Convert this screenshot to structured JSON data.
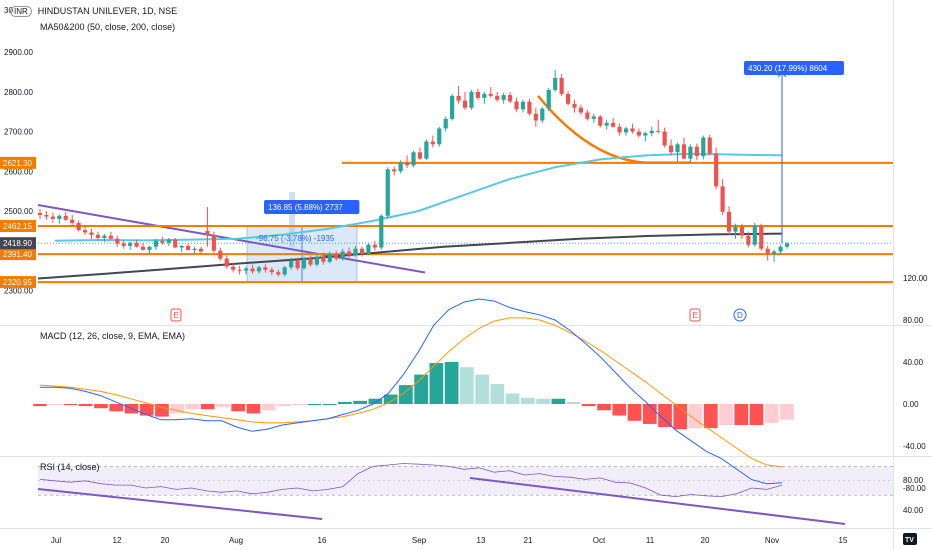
{
  "header": {
    "currency": "INR",
    "title": "HINDUSTAN UNILEVER, 1D, NSE",
    "ma_label": "MA50&200 (50, close, 200, close)",
    "macd_label": "MACD (12, 26, close, 9, EMA, EMA)",
    "rsi_label": "RSI (14, close)",
    "top_tick_partial": "30"
  },
  "colors": {
    "up": "#26a69a",
    "down": "#ef5350",
    "level": "#f57c00",
    "trend": "#7e57c2",
    "ma50": "#5ac8e0",
    "ma200": "#434651",
    "measure": "#2962ff",
    "macd_line": "#2962ff",
    "signal_line": "#ff9800"
  },
  "annotations": {
    "measure_up": "430.20 (17.99%) 8604",
    "measure_mid": "136.85 (5.88%) 2737",
    "measure_down": "-96.75 (-3.78%) -1935",
    "event_e": "E",
    "event_d": "D"
  },
  "logo_text": "TV",
  "chart_data": [
    {
      "type": "candlestick",
      "title": "HINDUSTAN UNILEVER, 1D, NSE",
      "y_ticks": [
        "2900.00",
        "2800.00",
        "2700.00",
        "2600.00",
        "2500.00",
        "2300.00"
      ],
      "ylim": [
        2265,
        3010
      ],
      "x_ticks": [
        "Jul",
        "12",
        "20",
        "Aug",
        "16",
        "Sep",
        "13",
        "21",
        "Oct",
        "11",
        "20",
        "Nov",
        "15"
      ],
      "levels": [
        {
          "value": 2621.3,
          "label": "2621.30"
        },
        {
          "value": 2462.15,
          "label": "2462.15"
        },
        {
          "value": 2391.4,
          "label": "2391.40"
        },
        {
          "value": 2320.95,
          "label": "2320.95"
        }
      ],
      "current_price": {
        "value": 2418.9,
        "label": "2418.90"
      },
      "series": [
        {
          "name": "MA50",
          "values": [
            2425,
            2427,
            2426,
            2428,
            2430,
            2440,
            2455,
            2475,
            2500,
            2540,
            2580,
            2610,
            2630,
            2640,
            2644,
            2642,
            2640
          ]
        },
        {
          "name": "MA200",
          "values": [
            2330,
            2342,
            2355,
            2368,
            2380,
            2395,
            2410,
            2420,
            2430,
            2437,
            2441,
            2443
          ]
        }
      ],
      "candles": [
        [
          2495,
          2505,
          2480,
          2490
        ],
        [
          2490,
          2500,
          2478,
          2486
        ],
        [
          2486,
          2496,
          2470,
          2480
        ],
        [
          2480,
          2492,
          2468,
          2488
        ],
        [
          2488,
          2498,
          2475,
          2478
        ],
        [
          2478,
          2490,
          2465,
          2470
        ],
        [
          2470,
          2476,
          2448,
          2452
        ],
        [
          2452,
          2462,
          2440,
          2446
        ],
        [
          2446,
          2455,
          2430,
          2440
        ],
        [
          2440,
          2448,
          2425,
          2432
        ],
        [
          2432,
          2442,
          2422,
          2438
        ],
        [
          2438,
          2448,
          2428,
          2430
        ],
        [
          2430,
          2438,
          2410,
          2418
        ],
        [
          2418,
          2426,
          2405,
          2412
        ],
        [
          2412,
          2422,
          2402,
          2420
        ],
        [
          2420,
          2428,
          2408,
          2410
        ],
        [
          2410,
          2420,
          2400,
          2402
        ],
        [
          2402,
          2412,
          2392,
          2410
        ],
        [
          2410,
          2430,
          2402,
          2425
        ],
        [
          2425,
          2435,
          2415,
          2420
        ],
        [
          2420,
          2432,
          2412,
          2428
        ],
        [
          2428,
          2432,
          2406,
          2408
        ],
        [
          2408,
          2414,
          2396,
          2412
        ],
        [
          2412,
          2418,
          2400,
          2402
        ],
        [
          2402,
          2410,
          2392,
          2405
        ],
        [
          2405,
          2410,
          2392,
          2398
        ],
        [
          2450,
          2510,
          2410,
          2440
        ],
        [
          2440,
          2448,
          2395,
          2400
        ],
        [
          2400,
          2408,
          2375,
          2380
        ],
        [
          2380,
          2388,
          2355,
          2360
        ],
        [
          2360,
          2370,
          2345,
          2352
        ],
        [
          2352,
          2362,
          2340,
          2350
        ],
        [
          2350,
          2360,
          2340,
          2355
        ],
        [
          2355,
          2365,
          2342,
          2348
        ],
        [
          2348,
          2362,
          2342,
          2358
        ],
        [
          2358,
          2366,
          2345,
          2352
        ],
        [
          2352,
          2358,
          2338,
          2346
        ],
        [
          2346,
          2352,
          2335,
          2340
        ],
        [
          2340,
          2362,
          2335,
          2358
        ],
        [
          2358,
          2382,
          2352,
          2375
        ],
        [
          2375,
          2382,
          2350,
          2356
        ],
        [
          2356,
          2385,
          2352,
          2380
        ],
        [
          2380,
          2388,
          2360,
          2365
        ],
        [
          2365,
          2392,
          2360,
          2385
        ],
        [
          2385,
          2395,
          2365,
          2372
        ],
        [
          2372,
          2398,
          2368,
          2392
        ],
        [
          2392,
          2400,
          2375,
          2380
        ],
        [
          2380,
          2405,
          2375,
          2398
        ],
        [
          2398,
          2408,
          2382,
          2388
        ],
        [
          2388,
          2412,
          2385,
          2405
        ],
        [
          2405,
          2410,
          2385,
          2392
        ],
        [
          2392,
          2420,
          2388,
          2415
        ],
        [
          2415,
          2425,
          2400,
          2408
        ],
        [
          2408,
          2492,
          2402,
          2488
        ],
        [
          2488,
          2610,
          2482,
          2605
        ],
        [
          2605,
          2612,
          2590,
          2600
        ],
        [
          2600,
          2628,
          2595,
          2622
        ],
        [
          2622,
          2640,
          2608,
          2615
        ],
        [
          2615,
          2652,
          2610,
          2648
        ],
        [
          2648,
          2660,
          2628,
          2632
        ],
        [
          2632,
          2680,
          2628,
          2675
        ],
        [
          2675,
          2690,
          2660,
          2668
        ],
        [
          2668,
          2712,
          2662,
          2708
        ],
        [
          2708,
          2738,
          2700,
          2732
        ],
        [
          2732,
          2795,
          2728,
          2790
        ],
        [
          2790,
          2815,
          2770,
          2778
        ],
        [
          2778,
          2800,
          2755,
          2760
        ],
        [
          2760,
          2805,
          2755,
          2800
        ],
        [
          2800,
          2808,
          2780,
          2785
        ],
        [
          2785,
          2800,
          2770,
          2795
        ],
        [
          2795,
          2812,
          2785,
          2790
        ],
        [
          2790,
          2800,
          2775,
          2780
        ],
        [
          2780,
          2798,
          2770,
          2792
        ],
        [
          2792,
          2800,
          2772,
          2776
        ],
        [
          2776,
          2785,
          2750,
          2756
        ],
        [
          2756,
          2780,
          2748,
          2775
        ],
        [
          2775,
          2782,
          2740,
          2745
        ],
        [
          2745,
          2760,
          2712,
          2728
        ],
        [
          2728,
          2762,
          2722,
          2758
        ],
        [
          2758,
          2810,
          2752,
          2805
        ],
        [
          2805,
          2855,
          2800,
          2835
        ],
        [
          2835,
          2845,
          2790,
          2795
        ],
        [
          2795,
          2802,
          2765,
          2770
        ],
        [
          2770,
          2780,
          2748,
          2760
        ],
        [
          2760,
          2768,
          2742,
          2748
        ],
        [
          2748,
          2755,
          2728,
          2732
        ],
        [
          2732,
          2745,
          2722,
          2738
        ],
        [
          2738,
          2742,
          2710,
          2715
        ],
        [
          2715,
          2730,
          2705,
          2722
        ],
        [
          2722,
          2735,
          2710,
          2712
        ],
        [
          2712,
          2720,
          2690,
          2698
        ],
        [
          2698,
          2712,
          2690,
          2708
        ],
        [
          2708,
          2720,
          2695,
          2700
        ],
        [
          2700,
          2708,
          2685,
          2690
        ],
        [
          2690,
          2700,
          2675,
          2696
        ],
        [
          2696,
          2712,
          2688,
          2702
        ],
        [
          2702,
          2730,
          2695,
          2700
        ],
        [
          2700,
          2710,
          2660,
          2665
        ],
        [
          2665,
          2680,
          2640,
          2648
        ],
        [
          2648,
          2672,
          2625,
          2668
        ],
        [
          2668,
          2685,
          2630,
          2632
        ],
        [
          2632,
          2668,
          2620,
          2662
        ],
        [
          2662,
          2670,
          2628,
          2638
        ],
        [
          2638,
          2690,
          2630,
          2685
        ],
        [
          2685,
          2692,
          2640,
          2645
        ],
        [
          2645,
          2660,
          2555,
          2562
        ],
        [
          2562,
          2580,
          2490,
          2498
        ],
        [
          2498,
          2512,
          2440,
          2448
        ],
        [
          2448,
          2468,
          2430,
          2460
        ],
        [
          2460,
          2468,
          2430,
          2438
        ],
        [
          2438,
          2448,
          2408,
          2415
        ],
        [
          2415,
          2470,
          2410,
          2462
        ],
        [
          2462,
          2468,
          2400,
          2405
        ],
        [
          2405,
          2412,
          2375,
          2392
        ],
        [
          2392,
          2402,
          2372,
          2398
        ],
        [
          2398,
          2415,
          2390,
          2410
        ],
        [
          2410,
          2422,
          2405,
          2418
        ]
      ]
    },
    {
      "type": "line",
      "title": "MACD (12, 26, close, 9, EMA, EMA)",
      "y_ticks": [
        "120.00",
        "80.00",
        "40.00",
        "0.00",
        "-40.00",
        "-80.00"
      ],
      "ylim": [
        -100,
        135
      ],
      "series": [
        {
          "name": "MACD",
          "values": [
            16,
            16,
            15,
            12,
            8,
            2,
            -4,
            -10,
            -15,
            -15,
            -14,
            -16,
            -16,
            -22,
            -26,
            -24,
            -20,
            -18,
            -16,
            -14,
            -10,
            -6,
            0,
            10,
            28,
            50,
            75,
            90,
            97,
            100,
            98,
            92,
            88,
            85,
            80,
            70,
            58,
            45,
            30,
            15,
            2,
            -12,
            -25,
            -35,
            -45,
            -52,
            -62,
            -72,
            -76,
            -75
          ]
        },
        {
          "name": "Signal",
          "values": [
            18,
            17,
            16,
            14,
            12,
            9,
            5,
            1,
            -3,
            -6,
            -9,
            -11,
            -13,
            -15,
            -17,
            -18,
            -18,
            -17,
            -16,
            -14,
            -12,
            -9,
            -5,
            1,
            10,
            22,
            36,
            50,
            62,
            72,
            79,
            82,
            82,
            80,
            75,
            68,
            60,
            51,
            41,
            31,
            21,
            10,
            -1,
            -12,
            -22,
            -32,
            -42,
            -52,
            -58,
            -60
          ]
        }
      ],
      "histogram": [
        -2,
        -1,
        -1,
        -2,
        -4,
        -7,
        -9,
        -11,
        -12,
        -9,
        -5,
        -5,
        -3,
        -7,
        -9,
        -6,
        -2,
        -1,
        0,
        0,
        2,
        3,
        5,
        9,
        18,
        28,
        39,
        40,
        35,
        28,
        19,
        10,
        6,
        5,
        5,
        2,
        -2,
        -6,
        -11,
        -16,
        -19,
        -22,
        -24,
        -23,
        -23,
        -20,
        -20,
        -20,
        -18,
        -15
      ]
    },
    {
      "type": "line",
      "title": "RSI (14, close)",
      "y_ticks": [
        "80.00",
        "40.00"
      ],
      "ylim": [
        20,
        90
      ],
      "bands": [
        70,
        30
      ],
      "series": [
        {
          "name": "RSI",
          "values": [
            52,
            50,
            48,
            50,
            46,
            44,
            44,
            40,
            42,
            38,
            40,
            36,
            34,
            36,
            32,
            34,
            38,
            40,
            36,
            38,
            42,
            60,
            70,
            72,
            74,
            73,
            72,
            70,
            66,
            68,
            62,
            64,
            58,
            60,
            56,
            55,
            52,
            54,
            48,
            47,
            40,
            30,
            28,
            31,
            29,
            28,
            32,
            40,
            38,
            44
          ]
        }
      ]
    }
  ]
}
